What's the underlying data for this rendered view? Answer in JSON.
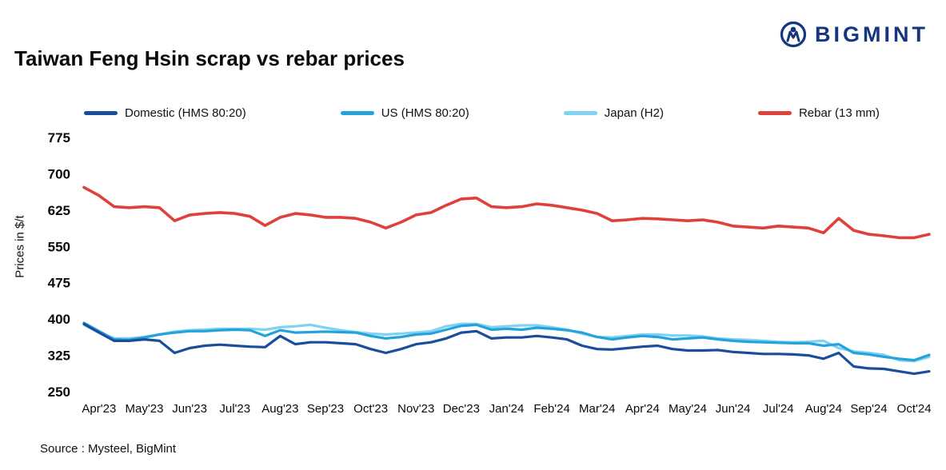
{
  "logo": {
    "brand": "BIGMINT"
  },
  "title": "Taiwan Feng Hsin scrap vs rebar prices",
  "source": "Source : Mysteel, BigMint",
  "chart_data": {
    "type": "line",
    "title": "Taiwan Feng Hsin scrap vs rebar prices",
    "ylabel": "Prices in $/t",
    "ylim": [
      250,
      775
    ],
    "yticks": [
      250,
      325,
      400,
      475,
      550,
      625,
      700,
      775
    ],
    "grid": false,
    "legend_position": "top",
    "points_per_month": 3,
    "categories": [
      "Apr'23",
      "May'23",
      "Jun'23",
      "Jul'23",
      "Aug'23",
      "Sep'23",
      "Oct'23",
      "Nov'23",
      "Dec'23",
      "Jan'24",
      "Feb'24",
      "Mar'24",
      "Apr'24",
      "May'24",
      "Jun'24",
      "Jul'24",
      "Aug'24",
      "Sep'24",
      "Oct'24"
    ],
    "series": [
      {
        "name": "Domestic (HMS 80:20)",
        "color": "#1a4e9c",
        "values": [
          390,
          372,
          355,
          355,
          358,
          355,
          330,
          340,
          345,
          347,
          345,
          343,
          342,
          365,
          348,
          352,
          352,
          350,
          348,
          338,
          330,
          338,
          348,
          352,
          360,
          372,
          375,
          360,
          362,
          362,
          365,
          362,
          358,
          345,
          338,
          337,
          340,
          343,
          345,
          338,
          335,
          335,
          336,
          332,
          330,
          328,
          328,
          327,
          325,
          318,
          330,
          302,
          298,
          297,
          292,
          287,
          292
        ]
      },
      {
        "name": "US (HMS 80:20)",
        "color": "#23a2dc",
        "values": [
          392,
          375,
          358,
          357,
          362,
          368,
          372,
          375,
          375,
          377,
          378,
          377,
          365,
          377,
          372,
          373,
          374,
          373,
          372,
          365,
          360,
          363,
          368,
          370,
          378,
          386,
          388,
          378,
          380,
          378,
          382,
          380,
          377,
          372,
          363,
          358,
          362,
          365,
          363,
          358,
          360,
          362,
          358,
          355,
          353,
          352,
          351,
          350,
          350,
          345,
          348,
          330,
          327,
          322,
          318,
          315,
          326
        ]
      },
      {
        "name": "Japan (H2)",
        "color": "#7fd2f2",
        "values": [
          388,
          372,
          360,
          360,
          363,
          368,
          374,
          377,
          378,
          380,
          380,
          380,
          378,
          383,
          385,
          388,
          382,
          377,
          373,
          370,
          368,
          370,
          372,
          375,
          385,
          390,
          390,
          383,
          385,
          387,
          387,
          383,
          378,
          370,
          363,
          362,
          365,
          368,
          368,
          366,
          366,
          364,
          360,
          358,
          357,
          355,
          353,
          352,
          353,
          355,
          340,
          333,
          330,
          326,
          315,
          313,
          322
        ]
      },
      {
        "name": "Rebar (13 mm)",
        "color": "#e0403a",
        "values": [
          672,
          655,
          632,
          630,
          632,
          630,
          603,
          615,
          618,
          620,
          618,
          612,
          593,
          610,
          618,
          615,
          610,
          610,
          608,
          600,
          588,
          600,
          615,
          620,
          635,
          648,
          650,
          632,
          630,
          632,
          638,
          635,
          630,
          625,
          618,
          603,
          605,
          608,
          607,
          605,
          603,
          605,
          600,
          592,
          590,
          588,
          592,
          590,
          588,
          578,
          608,
          583,
          575,
          572,
          568,
          568,
          575
        ]
      }
    ]
  }
}
